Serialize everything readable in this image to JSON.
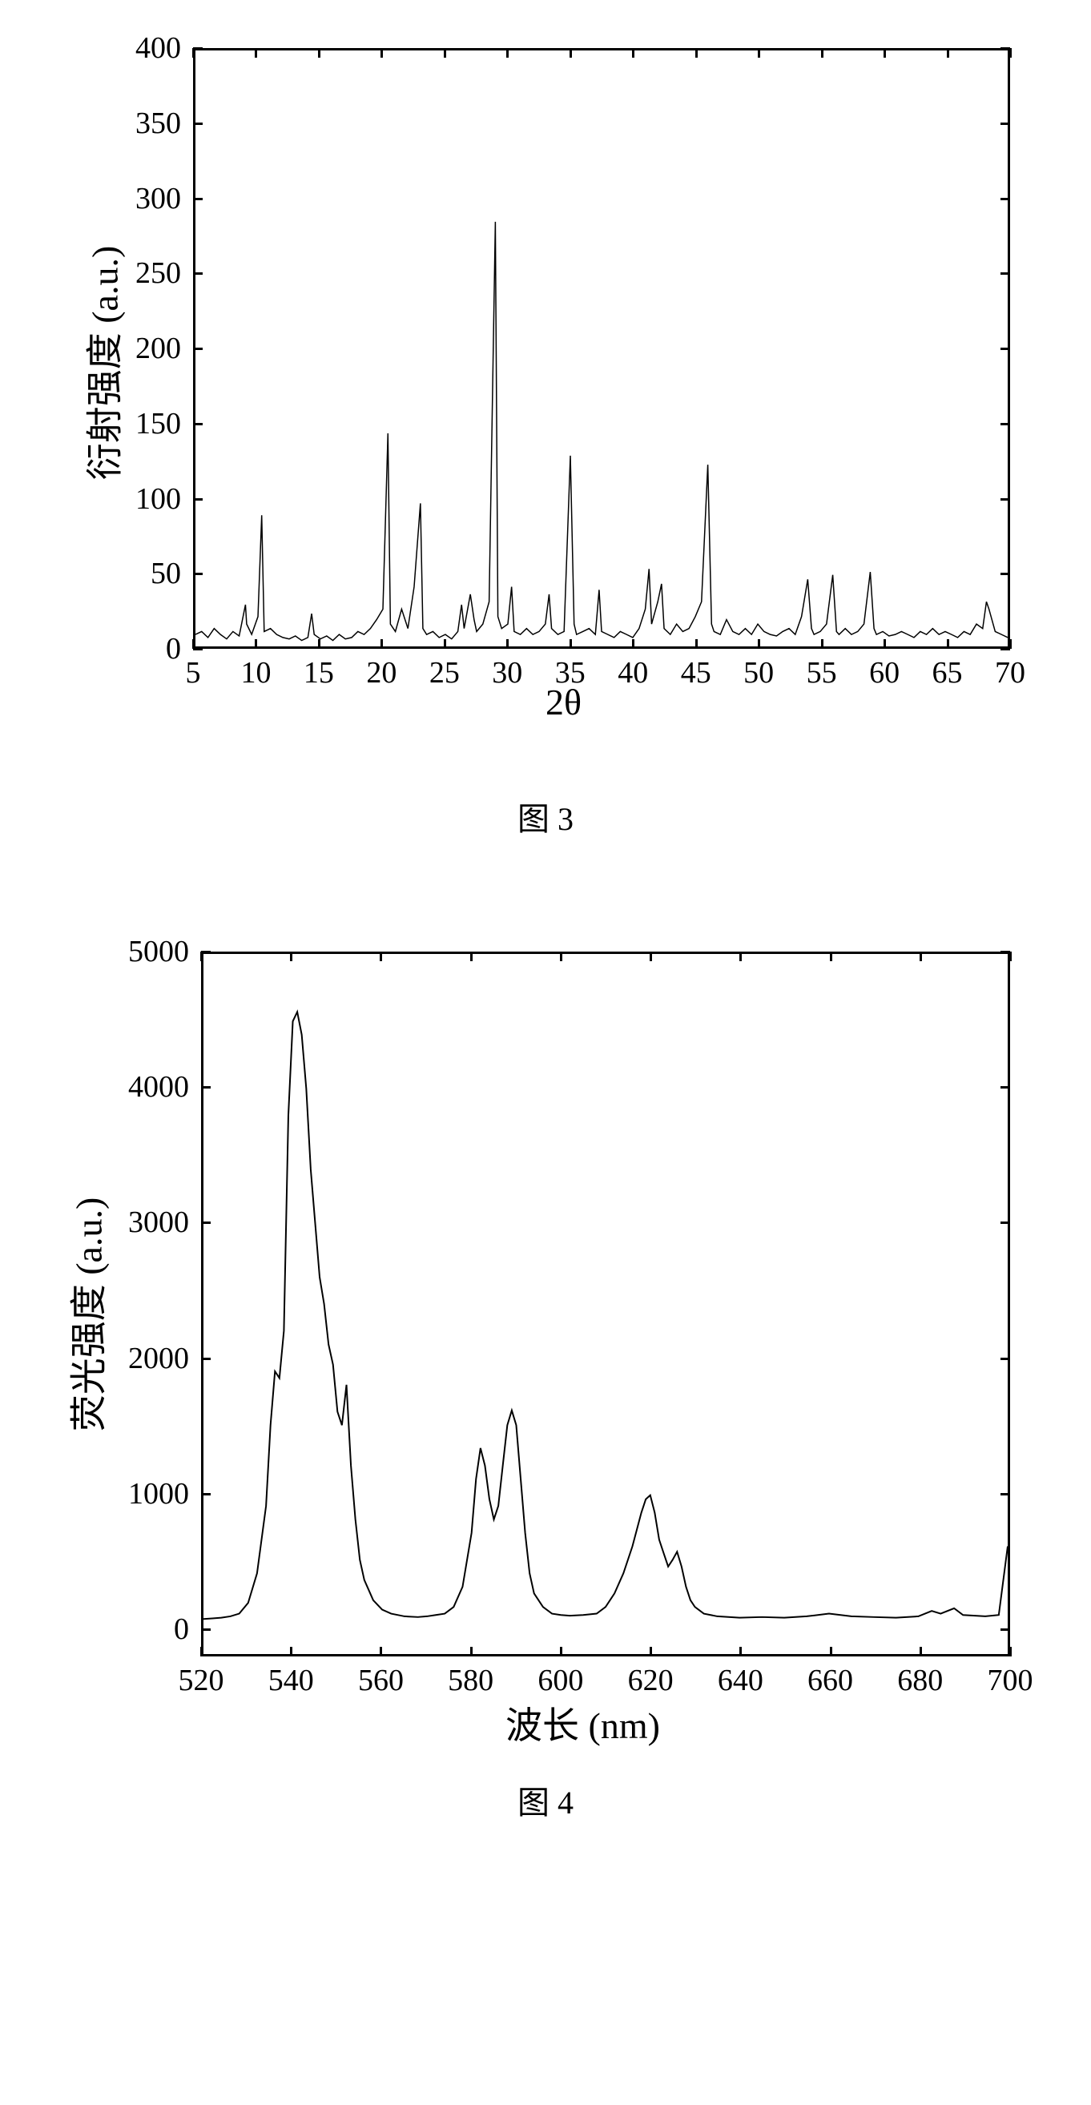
{
  "figure3": {
    "type": "line",
    "caption": "图 3",
    "ylabel": "衍射强度 (a.u.)",
    "xlabel": "2θ",
    "label_fontsize": 46,
    "tick_fontsize": 38,
    "background_color": "#ffffff",
    "line_color": "#000000",
    "border_color": "#000000",
    "border_width": 3,
    "xlim": [
      5,
      70
    ],
    "ylim": [
      0,
      400
    ],
    "xticks": [
      5,
      10,
      15,
      20,
      25,
      30,
      35,
      40,
      45,
      50,
      55,
      60,
      65,
      70
    ],
    "yticks": [
      0,
      50,
      100,
      150,
      200,
      250,
      300,
      350,
      400
    ],
    "xtick_step": 5,
    "ytick_step": 50,
    "line_width": 1.5,
    "data": [
      [
        5,
        8
      ],
      [
        5.5,
        10
      ],
      [
        6,
        6
      ],
      [
        6.5,
        12
      ],
      [
        7,
        8
      ],
      [
        7.5,
        5
      ],
      [
        8,
        10
      ],
      [
        8.5,
        7
      ],
      [
        9,
        28
      ],
      [
        9.1,
        15
      ],
      [
        9.5,
        8
      ],
      [
        10,
        20
      ],
      [
        10.3,
        88
      ],
      [
        10.5,
        10
      ],
      [
        11,
        12
      ],
      [
        11.5,
        8
      ],
      [
        12,
        6
      ],
      [
        12.5,
        5
      ],
      [
        13,
        7
      ],
      [
        13.5,
        4
      ],
      [
        14,
        6
      ],
      [
        14.3,
        22
      ],
      [
        14.5,
        8
      ],
      [
        15,
        5
      ],
      [
        15.5,
        7
      ],
      [
        16,
        4
      ],
      [
        16.5,
        8
      ],
      [
        17,
        5
      ],
      [
        17.5,
        6
      ],
      [
        18,
        10
      ],
      [
        18.5,
        8
      ],
      [
        19,
        12
      ],
      [
        19.5,
        18
      ],
      [
        20,
        25
      ],
      [
        20.4,
        143
      ],
      [
        20.6,
        15
      ],
      [
        21,
        10
      ],
      [
        21.5,
        25
      ],
      [
        22,
        12
      ],
      [
        22.5,
        40
      ],
      [
        23,
        96
      ],
      [
        23.2,
        12
      ],
      [
        23.5,
        8
      ],
      [
        24,
        10
      ],
      [
        24.5,
        6
      ],
      [
        25,
        8
      ],
      [
        25.5,
        5
      ],
      [
        26,
        10
      ],
      [
        26.3,
        28
      ],
      [
        26.5,
        12
      ],
      [
        27,
        35
      ],
      [
        27.3,
        18
      ],
      [
        27.5,
        10
      ],
      [
        28,
        15
      ],
      [
        28.5,
        30
      ],
      [
        29,
        285
      ],
      [
        29.2,
        20
      ],
      [
        29.5,
        12
      ],
      [
        30,
        15
      ],
      [
        30.3,
        40
      ],
      [
        30.5,
        10
      ],
      [
        31,
        8
      ],
      [
        31.5,
        12
      ],
      [
        32,
        8
      ],
      [
        32.5,
        10
      ],
      [
        33,
        15
      ],
      [
        33.3,
        35
      ],
      [
        33.5,
        12
      ],
      [
        34,
        8
      ],
      [
        34.5,
        10
      ],
      [
        35,
        128
      ],
      [
        35.3,
        15
      ],
      [
        35.5,
        8
      ],
      [
        36,
        10
      ],
      [
        36.5,
        12
      ],
      [
        37,
        8
      ],
      [
        37.3,
        38
      ],
      [
        37.5,
        10
      ],
      [
        38,
        8
      ],
      [
        38.5,
        6
      ],
      [
        39,
        10
      ],
      [
        39.5,
        8
      ],
      [
        40,
        6
      ],
      [
        40.5,
        12
      ],
      [
        41,
        25
      ],
      [
        41.3,
        52
      ],
      [
        41.5,
        15
      ],
      [
        42,
        30
      ],
      [
        42.3,
        42
      ],
      [
        42.5,
        12
      ],
      [
        43,
        8
      ],
      [
        43.5,
        15
      ],
      [
        44,
        10
      ],
      [
        44.5,
        12
      ],
      [
        45,
        20
      ],
      [
        45.5,
        30
      ],
      [
        46,
        122
      ],
      [
        46.3,
        15
      ],
      [
        46.5,
        10
      ],
      [
        47,
        8
      ],
      [
        47.5,
        18
      ],
      [
        48,
        10
      ],
      [
        48.5,
        8
      ],
      [
        49,
        12
      ],
      [
        49.5,
        8
      ],
      [
        50,
        15
      ],
      [
        50.5,
        10
      ],
      [
        51,
        8
      ],
      [
        51.5,
        7
      ],
      [
        52,
        10
      ],
      [
        52.5,
        12
      ],
      [
        53,
        8
      ],
      [
        53.5,
        20
      ],
      [
        54,
        45
      ],
      [
        54.3,
        12
      ],
      [
        54.5,
        8
      ],
      [
        55,
        10
      ],
      [
        55.5,
        15
      ],
      [
        56,
        48
      ],
      [
        56.3,
        10
      ],
      [
        56.5,
        8
      ],
      [
        57,
        12
      ],
      [
        57.5,
        8
      ],
      [
        58,
        10
      ],
      [
        58.5,
        15
      ],
      [
        59,
        50
      ],
      [
        59.3,
        12
      ],
      [
        59.5,
        8
      ],
      [
        60,
        10
      ],
      [
        60.5,
        7
      ],
      [
        61,
        8
      ],
      [
        61.5,
        10
      ],
      [
        62,
        8
      ],
      [
        62.5,
        6
      ],
      [
        63,
        10
      ],
      [
        63.5,
        8
      ],
      [
        64,
        12
      ],
      [
        64.5,
        8
      ],
      [
        65,
        10
      ],
      [
        65.5,
        8
      ],
      [
        66,
        6
      ],
      [
        66.5,
        10
      ],
      [
        67,
        8
      ],
      [
        67.5,
        15
      ],
      [
        68,
        12
      ],
      [
        68.3,
        30
      ],
      [
        68.5,
        25
      ],
      [
        69,
        10
      ],
      [
        69.5,
        8
      ],
      [
        70,
        6
      ]
    ]
  },
  "figure4": {
    "type": "line",
    "caption": "图 4",
    "ylabel": "荧光强度 (a.u.)",
    "xlabel": "波长 (nm)",
    "label_fontsize": 48,
    "tick_fontsize": 38,
    "background_color": "#ffffff",
    "line_color": "#000000",
    "border_color": "#000000",
    "border_width": 3,
    "xlim": [
      520,
      700
    ],
    "ylim": [
      -200,
      5000
    ],
    "xticks": [
      520,
      540,
      560,
      580,
      600,
      620,
      640,
      660,
      680,
      700
    ],
    "yticks": [
      0,
      1000,
      2000,
      3000,
      4000,
      5000
    ],
    "xtick_step": 20,
    "ytick_step": 1000,
    "line_width": 2,
    "data": [
      [
        520,
        60
      ],
      [
        522,
        65
      ],
      [
        524,
        70
      ],
      [
        526,
        80
      ],
      [
        528,
        100
      ],
      [
        530,
        180
      ],
      [
        532,
        400
      ],
      [
        534,
        900
      ],
      [
        535,
        1500
      ],
      [
        536,
        1900
      ],
      [
        537,
        1850
      ],
      [
        538,
        2200
      ],
      [
        539,
        3800
      ],
      [
        540,
        4500
      ],
      [
        541,
        4570
      ],
      [
        542,
        4400
      ],
      [
        543,
        4000
      ],
      [
        544,
        3400
      ],
      [
        545,
        3000
      ],
      [
        546,
        2600
      ],
      [
        547,
        2400
      ],
      [
        548,
        2100
      ],
      [
        549,
        1950
      ],
      [
        550,
        1600
      ],
      [
        551,
        1500
      ],
      [
        552,
        1800
      ],
      [
        553,
        1200
      ],
      [
        554,
        800
      ],
      [
        555,
        500
      ],
      [
        556,
        350
      ],
      [
        558,
        200
      ],
      [
        560,
        130
      ],
      [
        562,
        100
      ],
      [
        565,
        80
      ],
      [
        568,
        75
      ],
      [
        570,
        80
      ],
      [
        572,
        90
      ],
      [
        574,
        100
      ],
      [
        576,
        150
      ],
      [
        578,
        300
      ],
      [
        580,
        700
      ],
      [
        581,
        1100
      ],
      [
        582,
        1330
      ],
      [
        583,
        1200
      ],
      [
        584,
        950
      ],
      [
        585,
        800
      ],
      [
        586,
        900
      ],
      [
        587,
        1200
      ],
      [
        588,
        1500
      ],
      [
        589,
        1610
      ],
      [
        590,
        1500
      ],
      [
        591,
        1100
      ],
      [
        592,
        700
      ],
      [
        593,
        400
      ],
      [
        594,
        250
      ],
      [
        596,
        150
      ],
      [
        598,
        100
      ],
      [
        600,
        90
      ],
      [
        602,
        85
      ],
      [
        605,
        90
      ],
      [
        608,
        100
      ],
      [
        610,
        150
      ],
      [
        612,
        250
      ],
      [
        614,
        400
      ],
      [
        616,
        600
      ],
      [
        618,
        850
      ],
      [
        619,
        950
      ],
      [
        620,
        980
      ],
      [
        621,
        850
      ],
      [
        622,
        650
      ],
      [
        623,
        550
      ],
      [
        624,
        450
      ],
      [
        625,
        500
      ],
      [
        626,
        560
      ],
      [
        627,
        450
      ],
      [
        628,
        300
      ],
      [
        629,
        200
      ],
      [
        630,
        150
      ],
      [
        632,
        100
      ],
      [
        635,
        80
      ],
      [
        640,
        70
      ],
      [
        645,
        75
      ],
      [
        650,
        70
      ],
      [
        655,
        80
      ],
      [
        660,
        100
      ],
      [
        665,
        80
      ],
      [
        670,
        75
      ],
      [
        675,
        70
      ],
      [
        680,
        80
      ],
      [
        683,
        120
      ],
      [
        685,
        100
      ],
      [
        688,
        140
      ],
      [
        690,
        90
      ],
      [
        695,
        80
      ],
      [
        698,
        90
      ],
      [
        700,
        600
      ]
    ]
  }
}
